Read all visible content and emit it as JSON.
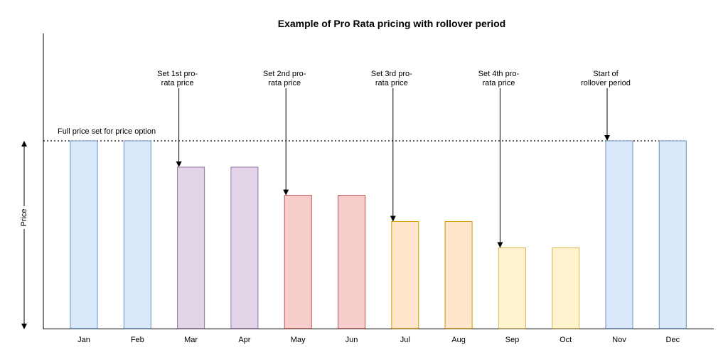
{
  "chart_data": {
    "type": "bar",
    "title": "Example of Pro Rata pricing with rollover period",
    "ylabel": "Price",
    "xlabel": "",
    "categories": [
      "Jan",
      "Feb",
      "Mar",
      "Apr",
      "May",
      "Jun",
      "Jul",
      "Aug",
      "Sep",
      "Oct",
      "Nov",
      "Dec"
    ],
    "values": [
      100,
      100,
      86,
      86,
      71,
      71,
      57,
      57,
      43,
      43,
      100,
      100
    ],
    "ylim": [
      0,
      100
    ],
    "grid": false,
    "reference_line": {
      "label": "Full price set for price option",
      "value": 100,
      "style": "dotted"
    },
    "annotations": [
      {
        "lines": [
          "Set 1st pro-",
          "rata price"
        ],
        "target": "Mar"
      },
      {
        "lines": [
          "Set 2nd pro-",
          "rata price"
        ],
        "target": "May"
      },
      {
        "lines": [
          "Set 3rd pro-",
          "rata price"
        ],
        "target": "Jul"
      },
      {
        "lines": [
          "Set 4th pro-",
          "rata price"
        ],
        "target": "Sep"
      },
      {
        "lines": [
          "Start of",
          "rollover period"
        ],
        "target": "Nov"
      }
    ],
    "colors": {
      "fills": [
        "#dae8fc",
        "#dae8fc",
        "#e1d5e7",
        "#e1d5e7",
        "#f8cecc",
        "#f8cecc",
        "#ffe6cc",
        "#ffe6cc",
        "#fff2cc",
        "#fff2cc",
        "#dae8fc",
        "#dae8fc"
      ],
      "strokes": [
        "#6c8ebf",
        "#6c8ebf",
        "#9673a6",
        "#9673a6",
        "#b85450",
        "#b85450",
        "#d79b00",
        "#d79b00",
        "#d6b656",
        "#d6b656",
        "#6c8ebf",
        "#6c8ebf"
      ]
    }
  }
}
